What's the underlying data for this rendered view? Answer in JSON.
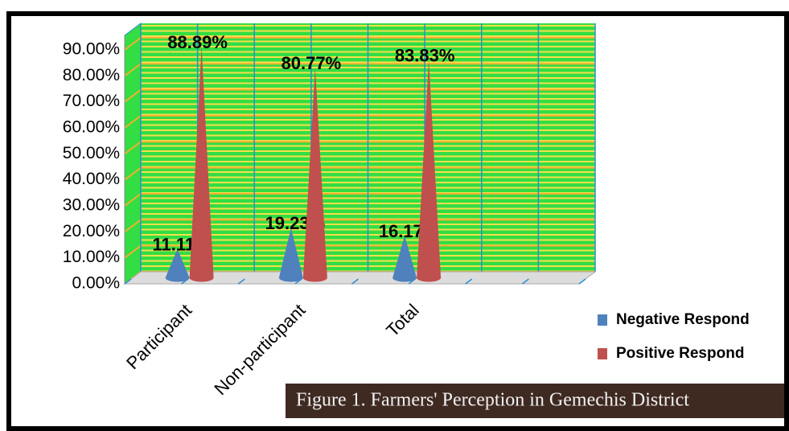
{
  "chart_data": {
    "type": "cone",
    "categories": [
      "Participant",
      "Non-participant",
      "Total"
    ],
    "series": [
      {
        "name": "Negative Respond",
        "color": "#4f81bd",
        "values": [
          11.11,
          19.23,
          16.17
        ],
        "value_labels": [
          "11.11%",
          "19.23%",
          "16.17%"
        ]
      },
      {
        "name": "Positive Respond",
        "color": "#c0504d",
        "values": [
          88.89,
          80.77,
          83.83
        ],
        "value_labels": [
          "88.89%",
          "80.77%",
          "83.83%"
        ]
      }
    ],
    "ylim": [
      0,
      90
    ],
    "yticks": [
      {
        "value": 0,
        "label": "0.00%"
      },
      {
        "value": 10,
        "label": "10.00%"
      },
      {
        "value": 20,
        "label": "20.00%"
      },
      {
        "value": 30,
        "label": "30.00%"
      },
      {
        "value": 40,
        "label": "40.00%"
      },
      {
        "value": 50,
        "label": "50.00%"
      },
      {
        "value": 60,
        "label": "60.00%"
      },
      {
        "value": 70,
        "label": "70.00%"
      },
      {
        "value": 80,
        "label": "80.00%"
      },
      {
        "value": 90,
        "label": "90.00%"
      }
    ],
    "grid": true,
    "legend": "right",
    "caption": "Figure 1. Farmers' Perception in Gemechis  District"
  }
}
